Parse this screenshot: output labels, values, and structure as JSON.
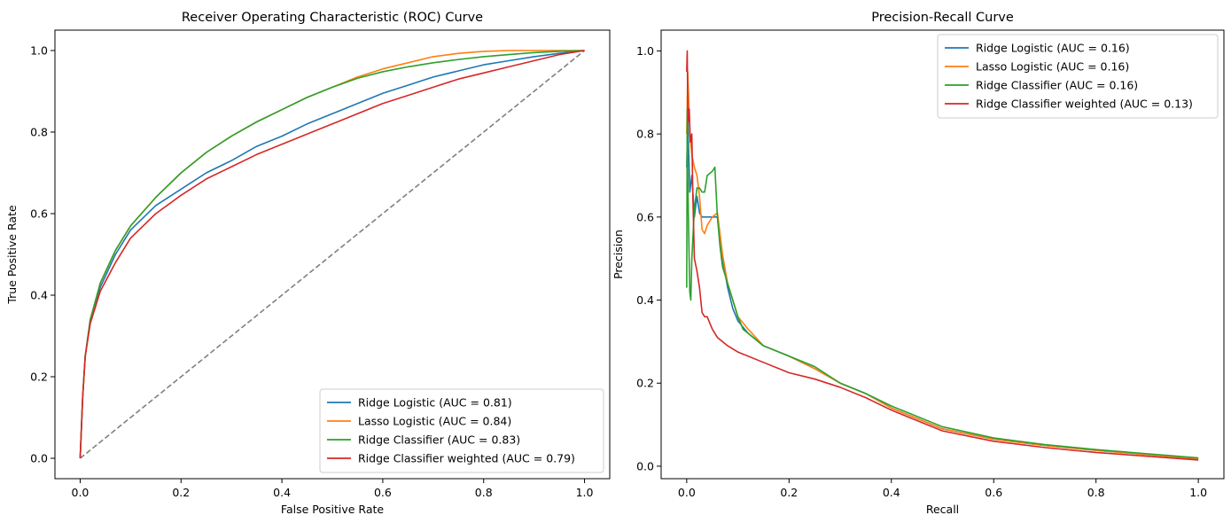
{
  "chart_data": [
    {
      "type": "line",
      "title": "Receiver Operating Characteristic (ROC) Curve",
      "xlabel": "False Positive Rate",
      "ylabel": "True Positive Rate",
      "xlim": [
        -0.05,
        1.05
      ],
      "ylim": [
        -0.05,
        1.05
      ],
      "xticks": [
        "0.0",
        "0.2",
        "0.4",
        "0.6",
        "0.8",
        "1.0"
      ],
      "yticks": [
        "0.0",
        "0.2",
        "0.4",
        "0.6",
        "0.8",
        "1.0"
      ],
      "grid": false,
      "legend_position": "lower-right",
      "reference_line": {
        "x": [
          0,
          1
        ],
        "y": [
          0,
          1
        ],
        "color": "#808080",
        "style": "dashed"
      },
      "series": [
        {
          "name": "Ridge Logistic (AUC = 0.81)",
          "color": "#1f77b4",
          "x": [
            0,
            0.005,
            0.01,
            0.02,
            0.04,
            0.07,
            0.1,
            0.15,
            0.2,
            0.25,
            0.3,
            0.35,
            0.4,
            0.45,
            0.5,
            0.55,
            0.6,
            0.65,
            0.7,
            0.75,
            0.8,
            0.85,
            0.9,
            0.95,
            1.0
          ],
          "y": [
            0,
            0.15,
            0.25,
            0.34,
            0.42,
            0.5,
            0.56,
            0.62,
            0.66,
            0.7,
            0.73,
            0.765,
            0.79,
            0.82,
            0.845,
            0.87,
            0.895,
            0.915,
            0.935,
            0.95,
            0.965,
            0.975,
            0.985,
            0.993,
            1.0
          ]
        },
        {
          "name": "Lasso Logistic (AUC = 0.84)",
          "color": "#ff7f0e",
          "x": [
            0,
            0.005,
            0.01,
            0.02,
            0.04,
            0.07,
            0.1,
            0.15,
            0.2,
            0.25,
            0.3,
            0.35,
            0.4,
            0.45,
            0.5,
            0.55,
            0.6,
            0.65,
            0.7,
            0.75,
            0.8,
            0.85,
            0.9,
            0.95,
            1.0
          ],
          "y": [
            0,
            0.15,
            0.25,
            0.34,
            0.43,
            0.51,
            0.57,
            0.64,
            0.7,
            0.75,
            0.79,
            0.825,
            0.855,
            0.885,
            0.91,
            0.935,
            0.955,
            0.97,
            0.985,
            0.993,
            0.998,
            1.0,
            1.0,
            1.0,
            1.0
          ]
        },
        {
          "name": "Ridge Classifier (AUC = 0.83)",
          "color": "#2ca02c",
          "x": [
            0,
            0.005,
            0.01,
            0.02,
            0.04,
            0.07,
            0.1,
            0.15,
            0.2,
            0.25,
            0.3,
            0.35,
            0.4,
            0.45,
            0.5,
            0.55,
            0.6,
            0.65,
            0.7,
            0.75,
            0.8,
            0.85,
            0.9,
            0.95,
            1.0
          ],
          "y": [
            0,
            0.15,
            0.25,
            0.34,
            0.43,
            0.51,
            0.57,
            0.64,
            0.7,
            0.75,
            0.79,
            0.825,
            0.855,
            0.885,
            0.91,
            0.932,
            0.948,
            0.96,
            0.97,
            0.978,
            0.985,
            0.99,
            0.995,
            0.998,
            1.0
          ]
        },
        {
          "name": "Ridge Classifier weighted (AUC = 0.79)",
          "color": "#d62728",
          "x": [
            0,
            0.005,
            0.01,
            0.02,
            0.04,
            0.07,
            0.1,
            0.15,
            0.2,
            0.25,
            0.3,
            0.35,
            0.4,
            0.45,
            0.5,
            0.55,
            0.6,
            0.65,
            0.7,
            0.75,
            0.8,
            0.85,
            0.9,
            0.95,
            1.0
          ],
          "y": [
            0,
            0.15,
            0.25,
            0.33,
            0.41,
            0.48,
            0.54,
            0.6,
            0.645,
            0.685,
            0.715,
            0.745,
            0.77,
            0.795,
            0.82,
            0.845,
            0.87,
            0.89,
            0.91,
            0.93,
            0.945,
            0.96,
            0.975,
            0.99,
            1.0
          ]
        }
      ]
    },
    {
      "type": "line",
      "title": "Precision-Recall Curve",
      "xlabel": "Recall",
      "ylabel": "Precision",
      "xlim": [
        -0.05,
        1.05
      ],
      "ylim": [
        -0.03,
        1.05
      ],
      "xticks": [
        "0.0",
        "0.2",
        "0.4",
        "0.6",
        "0.8",
        "1.0"
      ],
      "yticks": [
        "0.0",
        "0.2",
        "0.4",
        "0.6",
        "0.8",
        "1.0"
      ],
      "grid": false,
      "legend_position": "upper-right",
      "series": [
        {
          "name": "Ridge Logistic (AUC = 0.16)",
          "color": "#1f77b4",
          "x": [
            0,
            0.002,
            0.004,
            0.006,
            0.01,
            0.015,
            0.02,
            0.025,
            0.03,
            0.04,
            0.05,
            0.06,
            0.07,
            0.08,
            0.09,
            0.1,
            0.12,
            0.15,
            0.2,
            0.25,
            0.3,
            0.35,
            0.4,
            0.5,
            0.6,
            0.7,
            0.8,
            0.9,
            1.0
          ],
          "y": [
            0.72,
            0.84,
            0.75,
            0.66,
            0.7,
            0.6,
            0.65,
            0.61,
            0.6,
            0.6,
            0.6,
            0.6,
            0.5,
            0.43,
            0.38,
            0.35,
            0.32,
            0.29,
            0.265,
            0.235,
            0.2,
            0.175,
            0.14,
            0.09,
            0.065,
            0.05,
            0.038,
            0.028,
            0.018
          ]
        },
        {
          "name": "Lasso Logistic (AUC = 0.16)",
          "color": "#ff7f0e",
          "x": [
            0,
            0.002,
            0.004,
            0.006,
            0.01,
            0.015,
            0.02,
            0.025,
            0.03,
            0.035,
            0.04,
            0.05,
            0.06,
            0.07,
            0.08,
            0.09,
            0.1,
            0.12,
            0.15,
            0.2,
            0.25,
            0.3,
            0.35,
            0.4,
            0.5,
            0.6,
            0.7,
            0.8,
            0.9,
            1.0
          ],
          "y": [
            0.8,
            0.95,
            0.88,
            0.8,
            0.75,
            0.72,
            0.7,
            0.65,
            0.57,
            0.56,
            0.58,
            0.6,
            0.61,
            0.51,
            0.44,
            0.4,
            0.36,
            0.33,
            0.29,
            0.265,
            0.235,
            0.2,
            0.175,
            0.14,
            0.09,
            0.065,
            0.05,
            0.038,
            0.028,
            0.018
          ]
        },
        {
          "name": "Ridge Classifier (AUC = 0.16)",
          "color": "#2ca02c",
          "x": [
            0,
            0.001,
            0.002,
            0.004,
            0.006,
            0.008,
            0.01,
            0.015,
            0.02,
            0.025,
            0.03,
            0.035,
            0.04,
            0.05,
            0.055,
            0.06,
            0.065,
            0.07,
            0.08,
            0.09,
            0.1,
            0.11,
            0.12,
            0.15,
            0.2,
            0.25,
            0.3,
            0.35,
            0.4,
            0.5,
            0.6,
            0.7,
            0.8,
            0.9,
            1.0
          ],
          "y": [
            0.43,
            0.86,
            0.7,
            0.55,
            0.42,
            0.4,
            0.5,
            0.62,
            0.67,
            0.67,
            0.66,
            0.66,
            0.7,
            0.71,
            0.72,
            0.6,
            0.53,
            0.48,
            0.44,
            0.4,
            0.36,
            0.33,
            0.32,
            0.29,
            0.265,
            0.24,
            0.2,
            0.175,
            0.145,
            0.095,
            0.068,
            0.052,
            0.04,
            0.03,
            0.02
          ]
        },
        {
          "name": "Ridge Classifier weighted (AUC = 0.13)",
          "color": "#d62728",
          "x": [
            0,
            0.001,
            0.002,
            0.003,
            0.005,
            0.007,
            0.01,
            0.012,
            0.015,
            0.02,
            0.025,
            0.03,
            0.035,
            0.04,
            0.05,
            0.06,
            0.08,
            0.1,
            0.15,
            0.2,
            0.25,
            0.3,
            0.35,
            0.4,
            0.5,
            0.6,
            0.7,
            0.8,
            0.9,
            1.0
          ],
          "y": [
            0.95,
            1.0,
            0.87,
            0.83,
            0.86,
            0.78,
            0.8,
            0.65,
            0.5,
            0.47,
            0.43,
            0.37,
            0.36,
            0.36,
            0.33,
            0.31,
            0.29,
            0.275,
            0.25,
            0.225,
            0.21,
            0.19,
            0.165,
            0.135,
            0.085,
            0.06,
            0.045,
            0.033,
            0.024,
            0.015
          ]
        }
      ]
    }
  ]
}
